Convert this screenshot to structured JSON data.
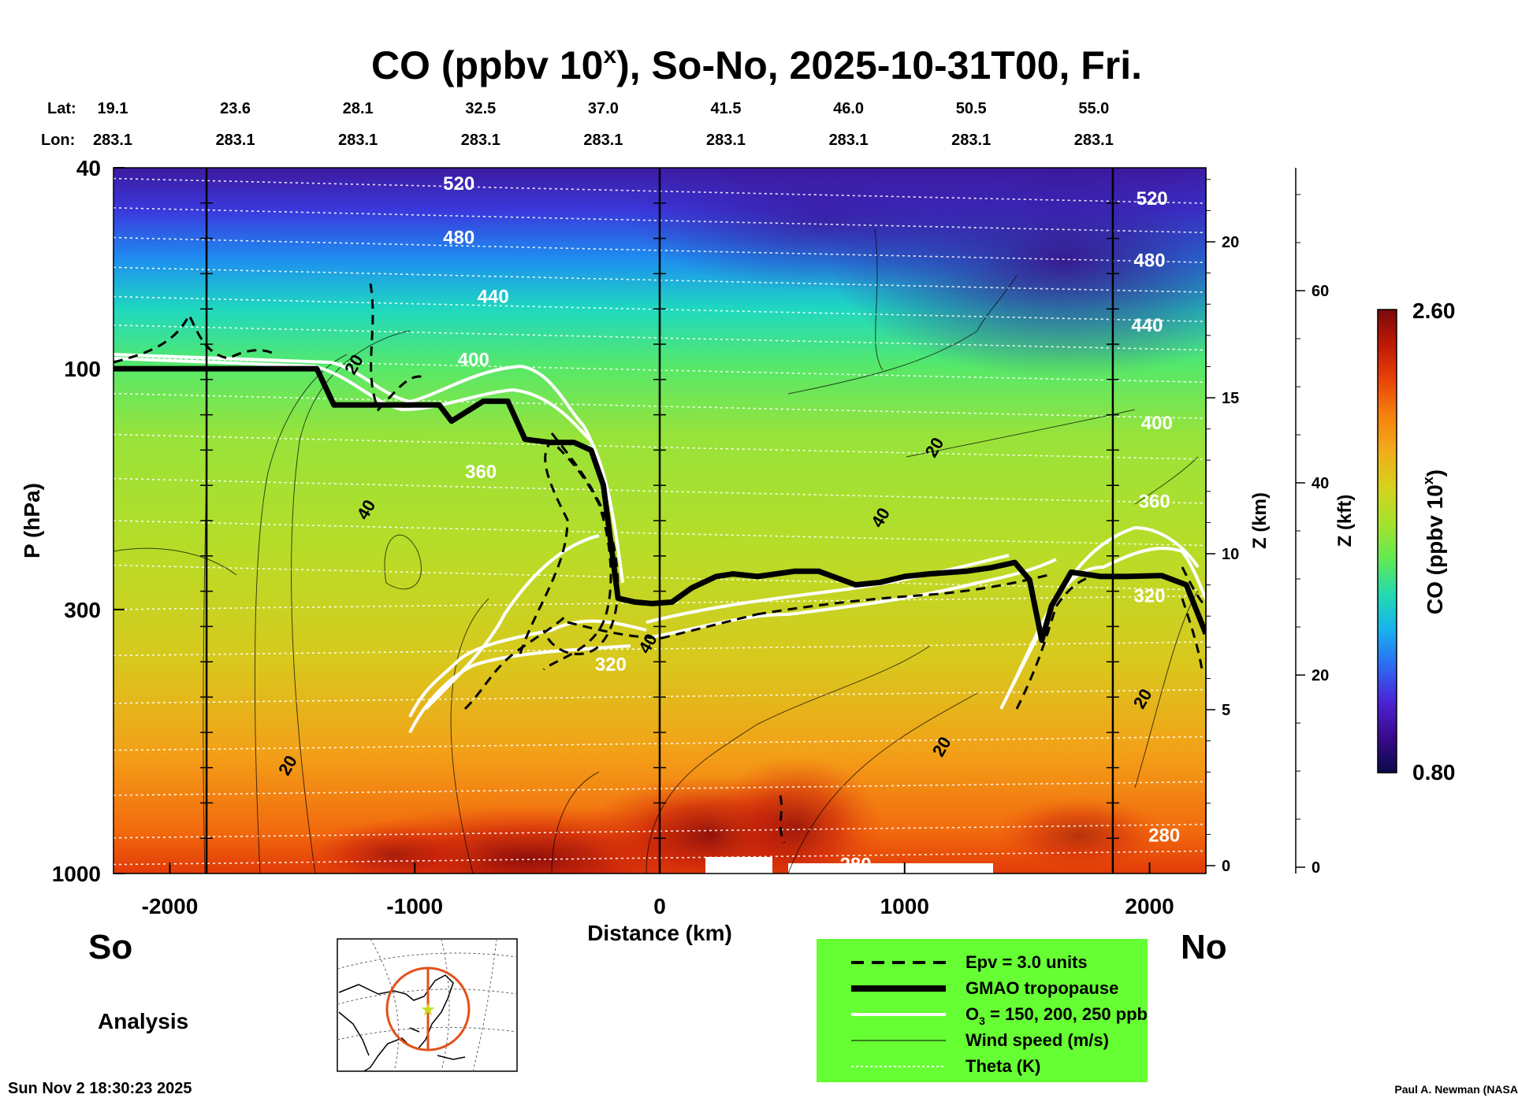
{
  "chart_data": {
    "type": "heatmap",
    "title_main": "CO (ppbv 10",
    "title_sup": "x",
    "title_rest": "), So-No, 2025-10-31T00, Fri.",
    "xlabel": "Distance (km)",
    "ylabel": "P (hPa)",
    "z_km_label": "Z (km)",
    "z_kft_label": "Z (kft)",
    "colorbar_label_main": "CO (ppbv 10",
    "colorbar_label_sup": "x",
    "colorbar_label_end": ")",
    "colorbar_max": "2.60",
    "colorbar_min": "0.80",
    "xlim": [
      -2230,
      2230
    ],
    "plim": [
      1000,
      40
    ],
    "x_ticks": [
      -2000,
      -1000,
      0,
      1000,
      2000
    ],
    "x_tick_labels": [
      "-2000",
      "-1000",
      "0",
      "1000",
      "2000"
    ],
    "p_ticks": [
      40,
      100,
      300,
      1000
    ],
    "p_tick_labels": [
      "40",
      "100",
      "300",
      "1000"
    ],
    "z_km_ticks": [
      0,
      5,
      10,
      15,
      20
    ],
    "z_km_labels": [
      "0",
      "5",
      "10",
      "15",
      "20"
    ],
    "z_kft_ticks": [
      0,
      20,
      40,
      60
    ],
    "z_kft_labels": [
      "0",
      "20",
      "40",
      "60"
    ],
    "lat_header": "Lat:",
    "lon_header": "Lon:",
    "stations": [
      {
        "lat": "19.1",
        "lon": "283.1"
      },
      {
        "lat": "23.6",
        "lon": "283.1"
      },
      {
        "lat": "28.1",
        "lon": "283.1"
      },
      {
        "lat": "32.5",
        "lon": "283.1"
      },
      {
        "lat": "37.0",
        "lon": "283.1"
      },
      {
        "lat": "41.5",
        "lon": "283.1"
      },
      {
        "lat": "46.0",
        "lon": "283.1"
      },
      {
        "lat": "50.5",
        "lon": "283.1"
      },
      {
        "lat": "55.0",
        "lon": "283.1"
      }
    ],
    "vertical_markers_km": [
      -1850,
      0,
      1850
    ],
    "theta_labels": [
      {
        "text": "520",
        "x": -820,
        "p": 43
      },
      {
        "text": "480",
        "x": -820,
        "p": 55
      },
      {
        "text": "440",
        "x": -680,
        "p": 72
      },
      {
        "text": "400",
        "x": -760,
        "p": 96
      },
      {
        "text": "360",
        "x": -730,
        "p": 160
      },
      {
        "text": "320",
        "x": -200,
        "p": 385
      },
      {
        "text": "280",
        "x": 800,
        "p": 960
      },
      {
        "text": "520",
        "x": 2010,
        "p": 46
      },
      {
        "text": "480",
        "x": 2000,
        "p": 61
      },
      {
        "text": "440",
        "x": 1990,
        "p": 82
      },
      {
        "text": "400",
        "x": 2030,
        "p": 128
      },
      {
        "text": "360",
        "x": 2020,
        "p": 183
      },
      {
        "text": "320",
        "x": 2000,
        "p": 282
      },
      {
        "text": "280",
        "x": 2060,
        "p": 840
      }
    ],
    "wind_labels": [
      {
        "text": "20",
        "x": -1250,
        "p": 98
      },
      {
        "text": "40",
        "x": -1200,
        "p": 190
      },
      {
        "text": "40",
        "x": 900,
        "p": 197
      },
      {
        "text": "20",
        "x": 1120,
        "p": 143
      },
      {
        "text": "40",
        "x": -50,
        "p": 350
      },
      {
        "text": "20",
        "x": -1520,
        "p": 610
      },
      {
        "text": "20",
        "x": 1150,
        "p": 560
      },
      {
        "text": "20",
        "x": 1970,
        "p": 450
      }
    ],
    "tropopause_p": [
      [
        -2230,
        100
      ],
      [
        -1530,
        100
      ],
      [
        -1400,
        100
      ],
      [
        -1330,
        118
      ],
      [
        -1150,
        118
      ],
      [
        -900,
        118
      ],
      [
        -850,
        127
      ],
      [
        -720,
        116
      ],
      [
        -620,
        116
      ],
      [
        -550,
        138
      ],
      [
        -450,
        140
      ],
      [
        -350,
        140
      ],
      [
        -280,
        145
      ],
      [
        -230,
        170
      ],
      [
        -200,
        220
      ],
      [
        -170,
        285
      ],
      [
        -100,
        290
      ],
      [
        -30,
        292
      ],
      [
        50,
        290
      ],
      [
        130,
        272
      ],
      [
        230,
        258
      ],
      [
        300,
        255
      ],
      [
        400,
        258
      ],
      [
        550,
        252
      ],
      [
        650,
        252
      ],
      [
        800,
        268
      ],
      [
        900,
        265
      ],
      [
        1000,
        258
      ],
      [
        1100,
        255
      ],
      [
        1250,
        252
      ],
      [
        1350,
        248
      ],
      [
        1450,
        242
      ],
      [
        1510,
        262
      ],
      [
        1560,
        345
      ],
      [
        1600,
        295
      ],
      [
        1680,
        253
      ],
      [
        1800,
        258
      ],
      [
        1900,
        258
      ],
      [
        2050,
        257
      ],
      [
        2150,
        268
      ],
      [
        2230,
        335
      ]
    ],
    "colorbar_stops": [
      "#0a0a4a",
      "#3a0a8c",
      "#4b24d6",
      "#2d6af2",
      "#17b2ef",
      "#22dab0",
      "#62ea51",
      "#a6e22d",
      "#d6d21c",
      "#f0ad1a",
      "#f5840e",
      "#ea4508",
      "#bf1a06",
      "#7a0a0a"
    ],
    "legend": {
      "bg_color": "#66ff33",
      "epv": "Epv = 3.0 units",
      "tropopause": "GMAO tropopause",
      "ozone_main": "O",
      "ozone_sub": "3",
      "ozone_rest": " = 150, 200, 250 ppb",
      "wind": "Wind speed (m/s)",
      "theta": "Theta (K)"
    },
    "south_label": "So",
    "north_label": "No",
    "analysis_label": "Analysis"
  },
  "footer": {
    "timestamp": "Sun Nov  2 18:30:23 2025",
    "credit": "Paul A. Newman (NASA"
  }
}
